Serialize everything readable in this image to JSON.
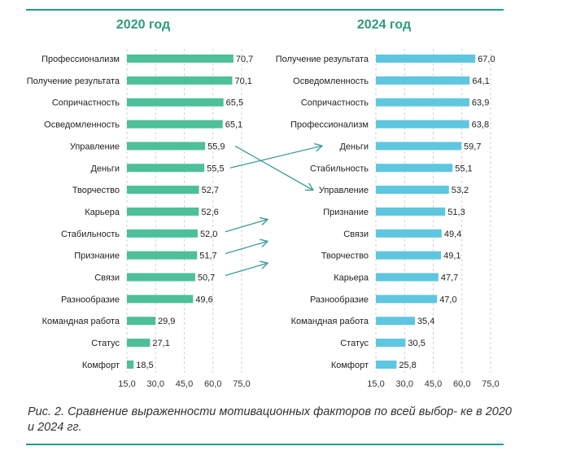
{
  "colors": {
    "rule": "#1a9e8f",
    "title": "#2e9a7d",
    "bar_2020": "#4dbf99",
    "bar_2024": "#5fc6e0",
    "arrow": "#3a9b9b",
    "text": "#222222",
    "tick": "#333333"
  },
  "chart_data": [
    {
      "type": "bar",
      "orientation": "horizontal",
      "title": "2020 год",
      "categories": [
        "Профессионализм",
        "Получение результата",
        "Сопричастность",
        "Осведомленность",
        "Управление",
        "Деньги",
        "Творчество",
        "Карьера",
        "Стабильность",
        "Признание",
        "Связи",
        "Разнообразие",
        "Командная работа",
        "Статус",
        "Комфорт"
      ],
      "values": [
        70.7,
        70.1,
        65.5,
        65.1,
        55.9,
        55.5,
        52.7,
        52.6,
        52.0,
        51.7,
        50.7,
        49.6,
        29.9,
        27.1,
        18.5
      ],
      "value_labels": [
        "70,7",
        "70,1",
        "65,5",
        "65,1",
        "55,9",
        "55,5",
        "52,7",
        "52,6",
        "52,0",
        "51,7",
        "50,7",
        "49,6",
        "29,9",
        "27,1",
        "18,5"
      ],
      "xlim": [
        15,
        75
      ],
      "xticks": [
        15,
        30,
        45,
        60,
        75
      ],
      "xtick_labels": [
        "15,0",
        "30,0",
        "45,0",
        "60,0",
        "75,0"
      ],
      "grid": "vertical dashed"
    },
    {
      "type": "bar",
      "orientation": "horizontal",
      "title": "2024 год",
      "categories": [
        "Получение результата",
        "Осведомленность",
        "Сопричастность",
        "Профессионализм",
        "Деньги",
        "Стабильность",
        "Управление",
        "Признание",
        "Связи",
        "Творчество",
        "Карьера",
        "Разнообразие",
        "Командная работа",
        "Статус",
        "Комфорт"
      ],
      "values": [
        67.0,
        64.1,
        63.9,
        63.8,
        59.7,
        55.1,
        53.2,
        51.3,
        49.4,
        49.1,
        47.7,
        47.0,
        35.4,
        30.5,
        25.8
      ],
      "value_labels": [
        "67,0",
        "64,1",
        "63,9",
        "63,8",
        "59,7",
        "55,1",
        "53,2",
        "51,3",
        "49,4",
        "49,1",
        "47,7",
        "47,0",
        "35,4",
        "30,5",
        "25,8"
      ],
      "xlim": [
        15,
        75
      ],
      "xticks": [
        15,
        30,
        45,
        60,
        75
      ],
      "xtick_labels": [
        "15,0",
        "30,0",
        "45,0",
        "60,0",
        "75,0"
      ],
      "grid": "vertical dashed"
    }
  ],
  "arrows": [
    {
      "from": "Управление",
      "to": "Управление"
    },
    {
      "from": "Деньги",
      "to": "Деньги"
    },
    {
      "from": "Стабильность",
      "to": "Связи"
    },
    {
      "from": "Признание",
      "to": "Творчество"
    },
    {
      "from": "Связи",
      "to": "Карьера"
    }
  ],
  "caption": "Рис. 2. Сравнение выраженности мотивационных факторов по всей выбор- ке в 2020 и 2024 гг."
}
